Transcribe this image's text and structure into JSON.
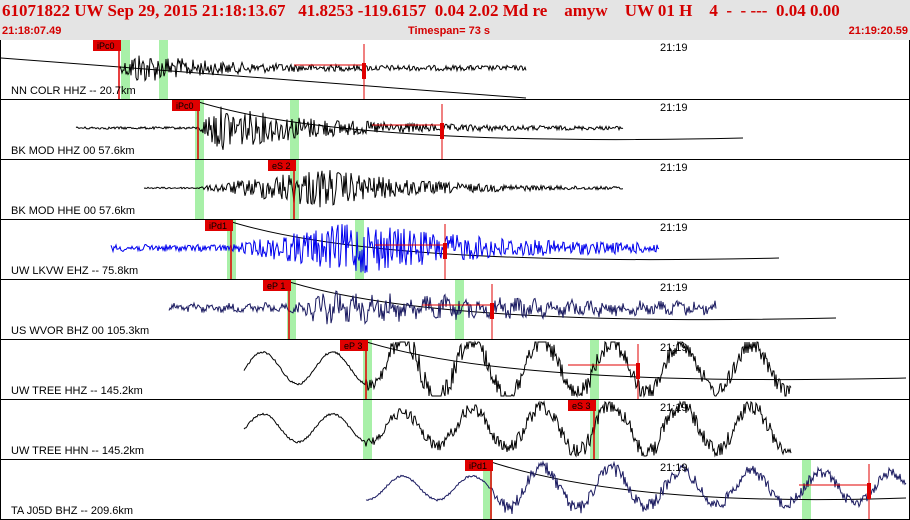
{
  "header": {
    "title": "61071822 UW Sep 29, 2015 21:18:13.67   41.8253 -119.6157  0.04 2.02 Md re    amyw    UW 01 H    4  -  - ---  0.04 0.00",
    "start_time": "21:18:07.49",
    "timespan": "Timespan=  73 s",
    "end_time": "21:19:20.59"
  },
  "colors": {
    "header_text": "#d40000",
    "pick_flag": "#e00000",
    "window_shade": "#a8f0a8",
    "trace_default": "#000000",
    "trace_blue": "#0000ee",
    "trace_navy": "#1a1a60"
  },
  "panels": [
    {
      "label": "NN COLR HHZ -- 20.7km",
      "time": "21:19",
      "pick": "iPc0",
      "trace_color": "trace_default"
    },
    {
      "label": "BK MOD HHZ 00 57.6km",
      "time": "21:19",
      "pick": "iPc0",
      "trace_color": "trace_default"
    },
    {
      "label": "BK MOD HHE 00 57.6km",
      "time": "21:19",
      "pick": "eS 2",
      "trace_color": "trace_default"
    },
    {
      "label": "UW LKVW EHZ -- 75.8km",
      "time": "21:19",
      "pick": "iPd1",
      "trace_color": "trace_blue"
    },
    {
      "label": "US WVOR BHZ 00 105.3km",
      "time": "21:19",
      "pick": "eP 1",
      "trace_color": "trace_navy"
    },
    {
      "label": "UW TREE HHZ -- 145.2km",
      "time": "21:19",
      "pick": "eP 3",
      "trace_color": "trace_default"
    },
    {
      "label": "UW TREE HHN -- 145.2km",
      "time": "21:19",
      "pick": "eS 3",
      "trace_color": "trace_default"
    },
    {
      "label": "TA J05D BHZ -- 209.6km",
      "time": "21:19",
      "pick": "iPd1",
      "trace_color": "trace_navy"
    }
  ]
}
